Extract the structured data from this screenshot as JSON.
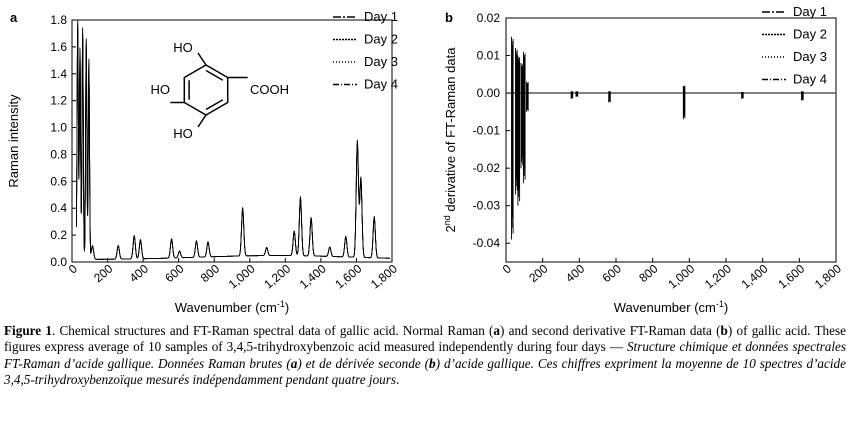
{
  "chart_data": [
    {
      "panel_label": "a",
      "type": "line",
      "xlabel": "Wavenumber (cm",
      "xlabel_sup": "-1",
      "xlabel_end": ")",
      "ylabel": "Raman intensity",
      "xlim": [
        0,
        1800
      ],
      "ylim": [
        0,
        1.8
      ],
      "xticks": [
        "0",
        "200",
        "400",
        "600",
        "800",
        "1,000",
        "1,200",
        "1,400",
        "1,600",
        "1,800"
      ],
      "yticks": [
        "0.0",
        "0.2",
        "0.4",
        "0.6",
        "0.8",
        "1.0",
        "1.2",
        "1.4",
        "1.6",
        "1.8"
      ],
      "legend": [
        "Day 1",
        "Day 2",
        "Day 3",
        "Day 4"
      ],
      "legend_position": "top-right",
      "peaks": [
        [
          32,
          1.76
        ],
        [
          45,
          1.55
        ],
        [
          60,
          1.7
        ],
        [
          80,
          1.62
        ],
        [
          95,
          1.47
        ],
        [
          115,
          0.1
        ],
        [
          260,
          0.1
        ],
        [
          350,
          0.17
        ],
        [
          385,
          0.14
        ],
        [
          560,
          0.14
        ],
        [
          605,
          0.05
        ],
        [
          700,
          0.12
        ],
        [
          765,
          0.11
        ],
        [
          960,
          0.35
        ],
        [
          1095,
          0.06
        ],
        [
          1250,
          0.18
        ],
        [
          1285,
          0.43
        ],
        [
          1345,
          0.28
        ],
        [
          1450,
          0.07
        ],
        [
          1540,
          0.15
        ],
        [
          1605,
          0.85
        ],
        [
          1625,
          0.58
        ],
        [
          1700,
          0.3
        ]
      ],
      "structure_labels": {
        "oh_top": "HO",
        "oh_left": "HO",
        "oh_bottom": "HO",
        "acid": "COOH"
      }
    },
    {
      "panel_label": "b",
      "type": "line",
      "xlabel": "Wavenumber (cm",
      "xlabel_sup": "-1",
      "xlabel_end": ")",
      "ylabel_sup": "nd",
      "ylabel": "2",
      "ylabel_rest": " derivative of FT-Raman data",
      "xlim": [
        0,
        1800
      ],
      "ylim": [
        -0.045,
        0.02
      ],
      "xticks": [
        "0",
        "200",
        "400",
        "600",
        "800",
        "1,000",
        "1,200",
        "1,400",
        "1,600",
        "1,800"
      ],
      "yticks": [
        "-0.04",
        "-0.03",
        "-0.02",
        "-0.01",
        "0.00",
        "0.01",
        "0.02"
      ],
      "legend": [
        "Day 1",
        "Day 2",
        "Day 3",
        "Day 4"
      ],
      "legend_position": "top-right",
      "spikes": [
        [
          30,
          0.015,
          -0.039
        ],
        [
          50,
          0.012,
          -0.027
        ],
        [
          65,
          0.01,
          -0.03
        ],
        [
          80,
          0.008,
          -0.02
        ],
        [
          95,
          0.011,
          -0.024
        ],
        [
          110,
          0.003,
          -0.005
        ],
        [
          355,
          0.0005,
          -0.0015
        ],
        [
          380,
          0.0005,
          -0.001
        ],
        [
          560,
          0.0005,
          -0.0025
        ],
        [
          965,
          0.002,
          -0.007
        ],
        [
          1285,
          0.0003,
          -0.0015
        ],
        [
          1610,
          0.0005,
          -0.002
        ]
      ]
    }
  ],
  "caption": {
    "fig_label": "Figure 1",
    "p1": ". Chemical structures and FT-Raman spectral data of gallic acid. Normal Raman (",
    "a1": "a",
    "p2": ") and second derivative FT-Raman data (",
    "b1": "b",
    "p3": ") of gallic acid. These figures express average of 10 samples of 3,4,5-trihydroxybenzoic acid measured independently during four days — ",
    "fr1": "Structure chimique et données spectrales FT-Raman d’acide gallique. Données Raman brutes (",
    "a2": "a",
    "fr2": ") et de dérivée seconde (",
    "b2": "b",
    "fr3": ") d’acide gallique. Ces chiffres expriment la moyenne de 10 spectres d’acide 3,4,5-trihydroxybenzoïque mesurés indépendamment pendant quatre jours",
    "end": "."
  }
}
